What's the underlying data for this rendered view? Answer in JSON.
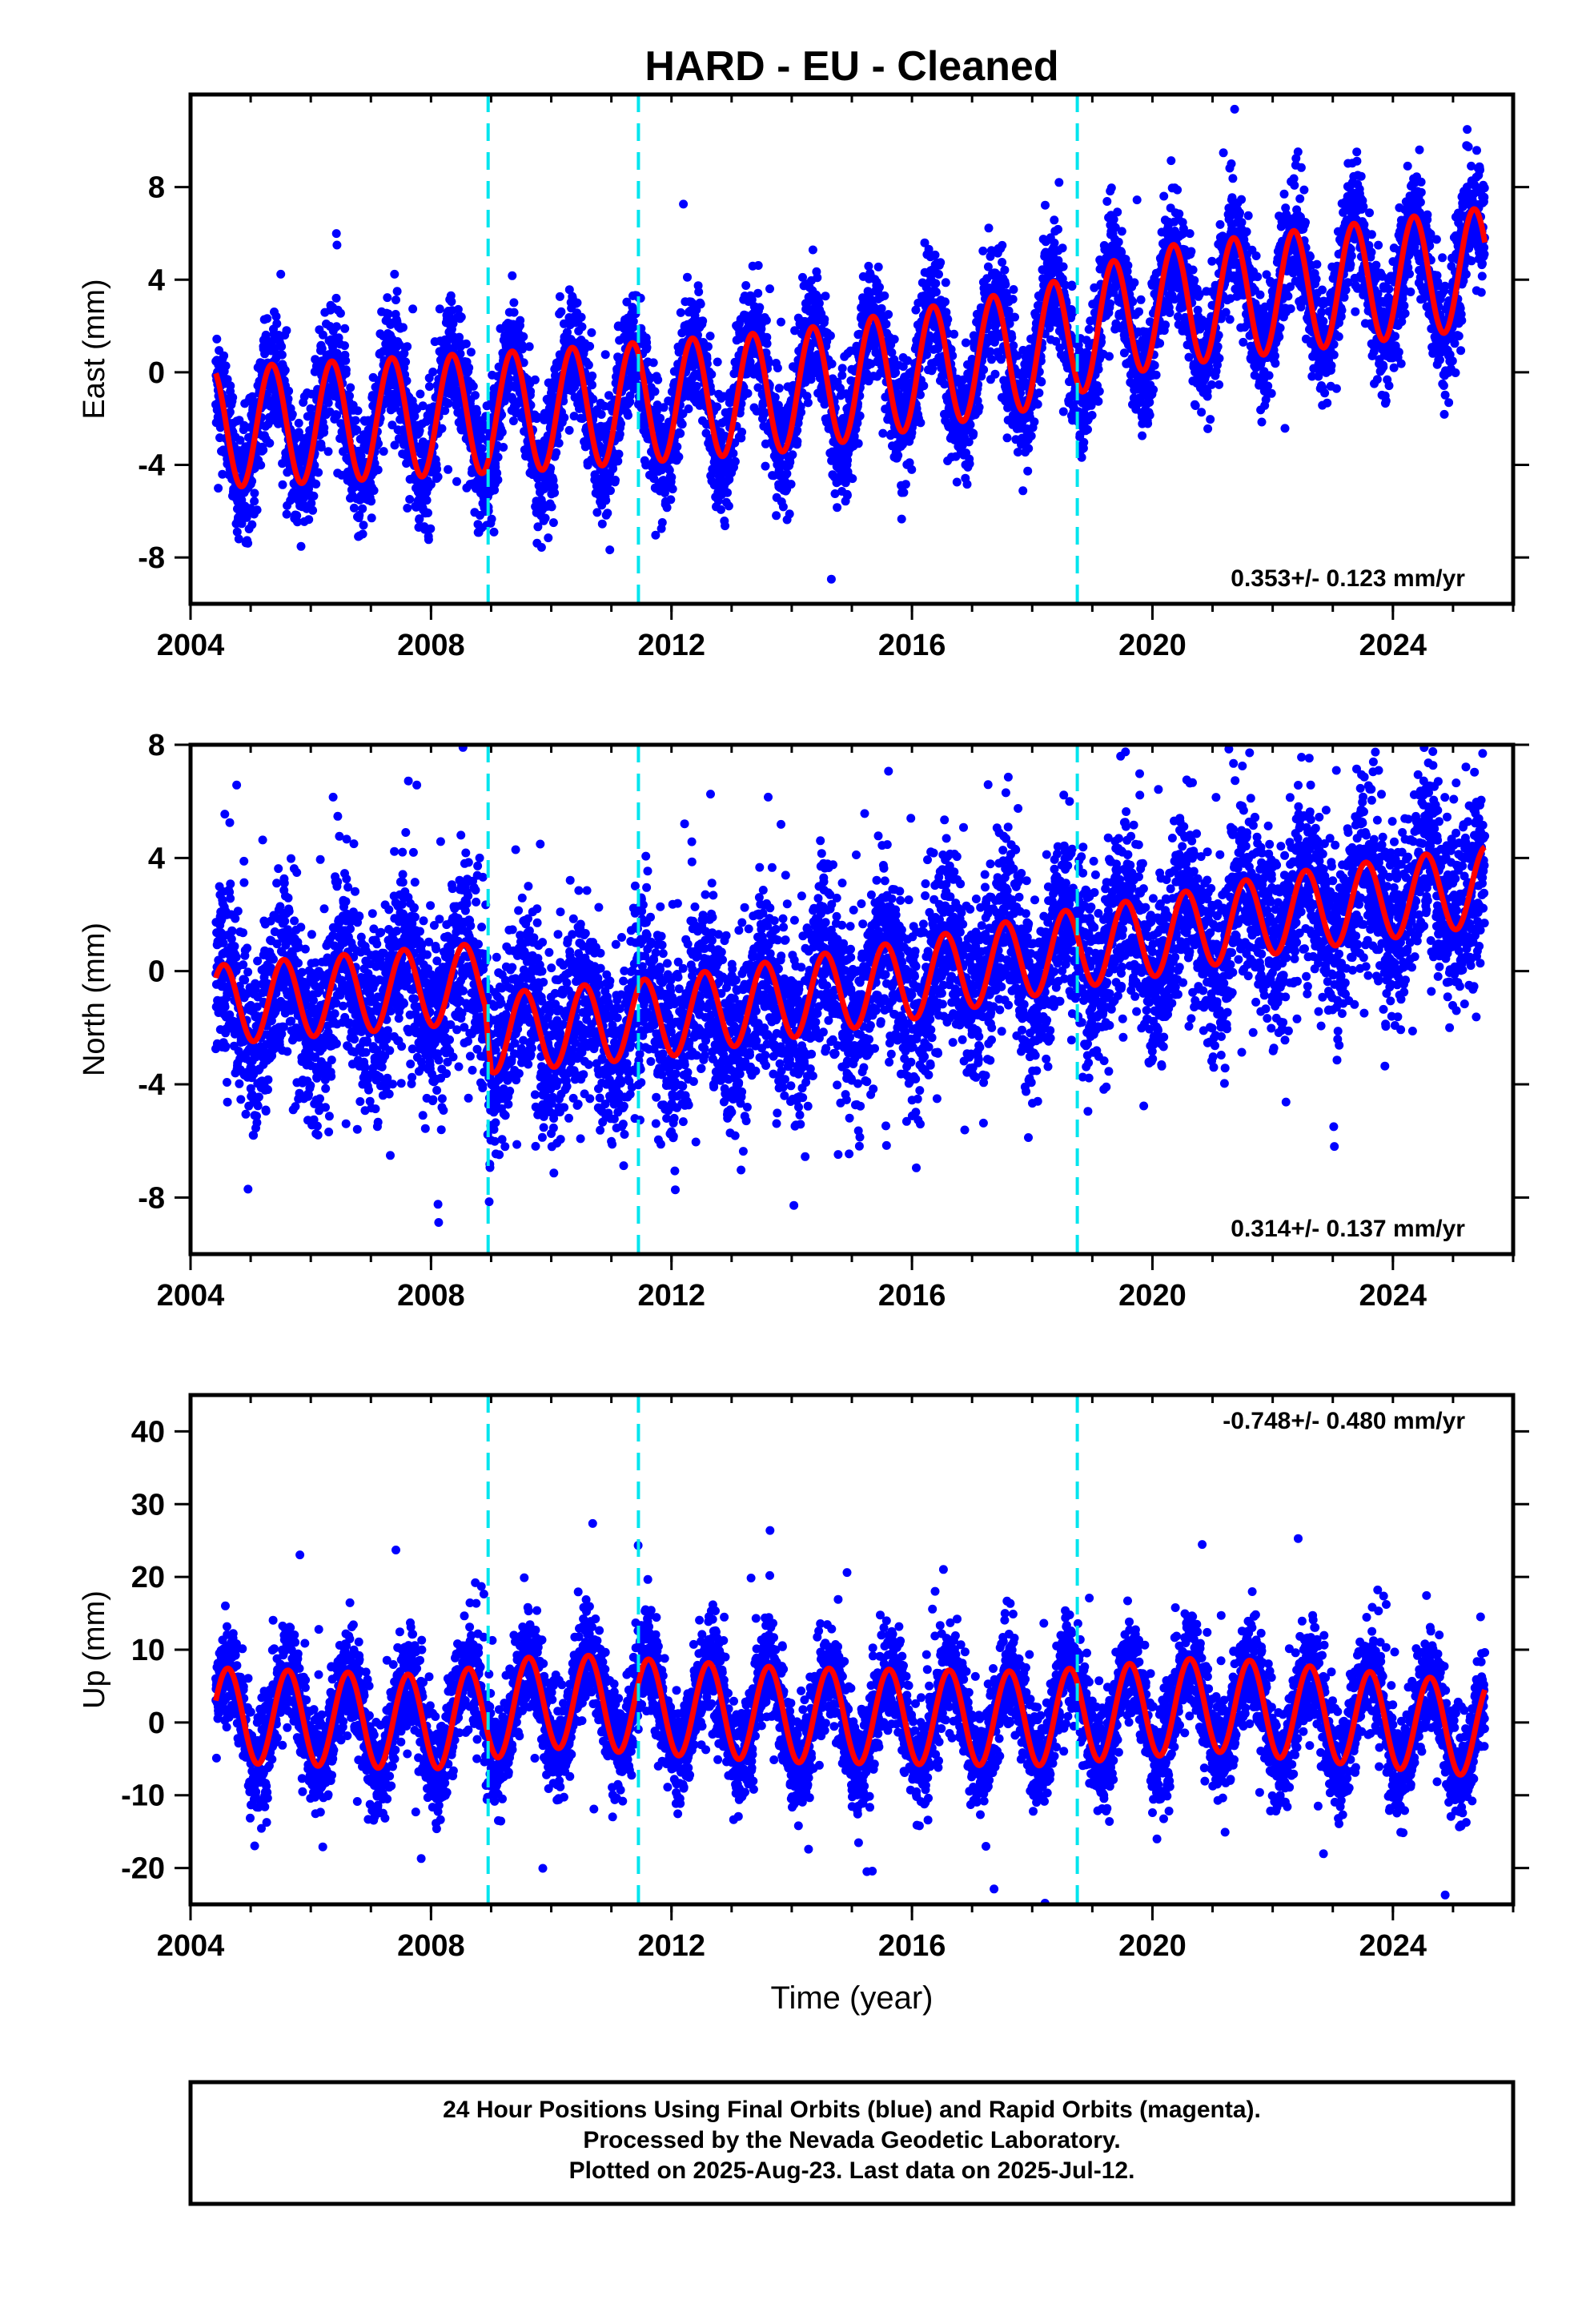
{
  "chart_data": [
    {
      "type": "scatter",
      "title": "HARD  - EU - Cleaned",
      "ylabel": "East (mm)",
      "xlabel": "",
      "xlim": [
        2004,
        2026
      ],
      "ylim": [
        -10,
        12
      ],
      "xticks": [
        2004,
        2008,
        2012,
        2016,
        2020,
        2024
      ],
      "yticks": [
        -8,
        -4,
        0,
        4,
        8
      ],
      "grid": false,
      "rate_label": "0.353+/- 0.123 mm/yr",
      "offsets": [
        2008.95,
        2011.45,
        2018.75
      ],
      "data_range": [
        2004.42,
        2025.53
      ],
      "colors": {
        "points": "#0000ff",
        "model": "#ff0000",
        "offsets": "#00e5ee"
      },
      "model": {
        "start": -2.6,
        "trend_points": [
          [
            2004.4,
            -2.4
          ],
          [
            2010,
            -1.6
          ],
          [
            2014,
            -0.8
          ],
          [
            2018,
            1.0
          ],
          [
            2020,
            2.8
          ],
          [
            2022,
            3.4
          ],
          [
            2025.5,
            4.5
          ]
        ],
        "amplitude": 2.6,
        "peak_phase": 0.35,
        "noise": 1.3,
        "outlier_rate": 0.006
      }
    },
    {
      "type": "scatter",
      "title": "",
      "ylabel": "North (mm)",
      "xlabel": "",
      "xlim": [
        2004,
        2026
      ],
      "ylim": [
        -10,
        8
      ],
      "xticks": [
        2004,
        2008,
        2012,
        2016,
        2020,
        2024
      ],
      "yticks": [
        -8,
        -4,
        0,
        4,
        8
      ],
      "grid": false,
      "rate_label": "0.314+/- 0.137 mm/yr",
      "offsets": [
        2008.95,
        2011.45,
        2018.75
      ],
      "data_range": [
        2004.42,
        2025.53
      ],
      "colors": {
        "points": "#0000ff",
        "model": "#ff0000",
        "offsets": "#00e5ee"
      },
      "model": {
        "trend_points": [
          [
            2004.4,
            -1.2
          ],
          [
            2008.9,
            -0.4
          ],
          [
            2009.0,
            -2.2
          ],
          [
            2012,
            -1.6
          ],
          [
            2016,
            -0.3
          ],
          [
            2018.7,
            0.8
          ],
          [
            2020,
            1.2
          ],
          [
            2022,
            2.0
          ],
          [
            2025.5,
            3.0
          ]
        ],
        "amplitude": 1.4,
        "peak_phase": 0.55,
        "noise": 1.6,
        "outlier_rate": 0.02
      }
    },
    {
      "type": "scatter",
      "title": "",
      "ylabel": "Up (mm)",
      "xlabel": "Time (year)",
      "xlim": [
        2004,
        2026
      ],
      "ylim": [
        -25,
        45
      ],
      "xticks": [
        2004,
        2008,
        2012,
        2016,
        2020,
        2024
      ],
      "yticks": [
        -20,
        -10,
        0,
        10,
        20,
        30,
        40
      ],
      "grid": false,
      "rate_label": "-0.748+/- 0.480 mm/yr",
      "offsets": [
        2008.95,
        2011.45,
        2018.75
      ],
      "data_range": [
        2004.42,
        2025.53
      ],
      "colors": {
        "points": "#0000ff",
        "model": "#ff0000",
        "offsets": "#00e5ee"
      },
      "model": {
        "trend_points": [
          [
            2004.4,
            1.0
          ],
          [
            2008,
            0.0
          ],
          [
            2010,
            3.0
          ],
          [
            2014,
            1.0
          ],
          [
            2018,
            0.5
          ],
          [
            2021,
            2.5
          ],
          [
            2025.5,
            -1.0
          ]
        ],
        "amplitude": 6.5,
        "peak_phase": 0.62,
        "noise": 3.5,
        "outlier_rate": 0.012
      }
    }
  ],
  "footer": {
    "lines": [
      "24 Hour Positions Using Final Orbits (blue) and Rapid Orbits (magenta).",
      "Processed by the Nevada Geodetic Laboratory.",
      "Plotted on 2025-Aug-23. Last data on 2025-Jul-12."
    ]
  }
}
